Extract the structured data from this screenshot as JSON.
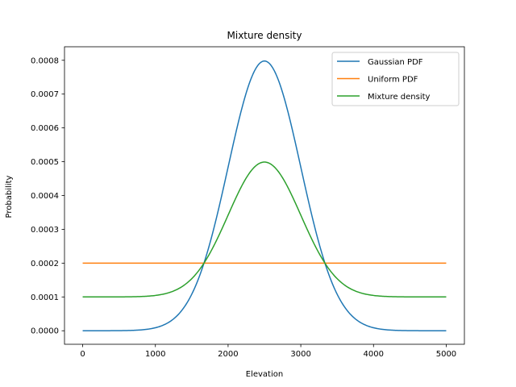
{
  "chart_data": {
    "type": "line",
    "title": "Mixture density",
    "xlabel": "Elevation",
    "ylabel": "Probability",
    "xlim": [
      -250,
      5250
    ],
    "ylim": [
      -4e-05,
      0.00084
    ],
    "xticks": [
      0,
      1000,
      2000,
      3000,
      4000,
      5000
    ],
    "xtick_labels": [
      "0",
      "1000",
      "2000",
      "3000",
      "4000",
      "5000"
    ],
    "yticks": [
      0,
      0.0001,
      0.0002,
      0.0003,
      0.0004,
      0.0005,
      0.0006,
      0.0007,
      0.0008
    ],
    "ytick_labels": [
      "0.0000",
      "0.0001",
      "0.0002",
      "0.0003",
      "0.0004",
      "0.0005",
      "0.0006",
      "0.0007",
      "0.0008"
    ],
    "grid": false,
    "legend_position": "top-right",
    "series": [
      {
        "name": "Gaussian PDF",
        "color": "#1f77b4",
        "function": "gaussian",
        "mean": 2500,
        "std": 500,
        "x_range": [
          0,
          5000
        ],
        "peak": 0.0008
      },
      {
        "name": "Uniform PDF",
        "color": "#ff7f0e",
        "function": "uniform",
        "value": 0.0002,
        "x_range": [
          0,
          5000
        ]
      },
      {
        "name": "Mixture density",
        "color": "#2ca02c",
        "function": "mixture",
        "weights": [
          0.5,
          0.5
        ],
        "x_range": [
          0,
          5000
        ],
        "peak": 0.0005,
        "baseline": 0.0001
      }
    ]
  }
}
